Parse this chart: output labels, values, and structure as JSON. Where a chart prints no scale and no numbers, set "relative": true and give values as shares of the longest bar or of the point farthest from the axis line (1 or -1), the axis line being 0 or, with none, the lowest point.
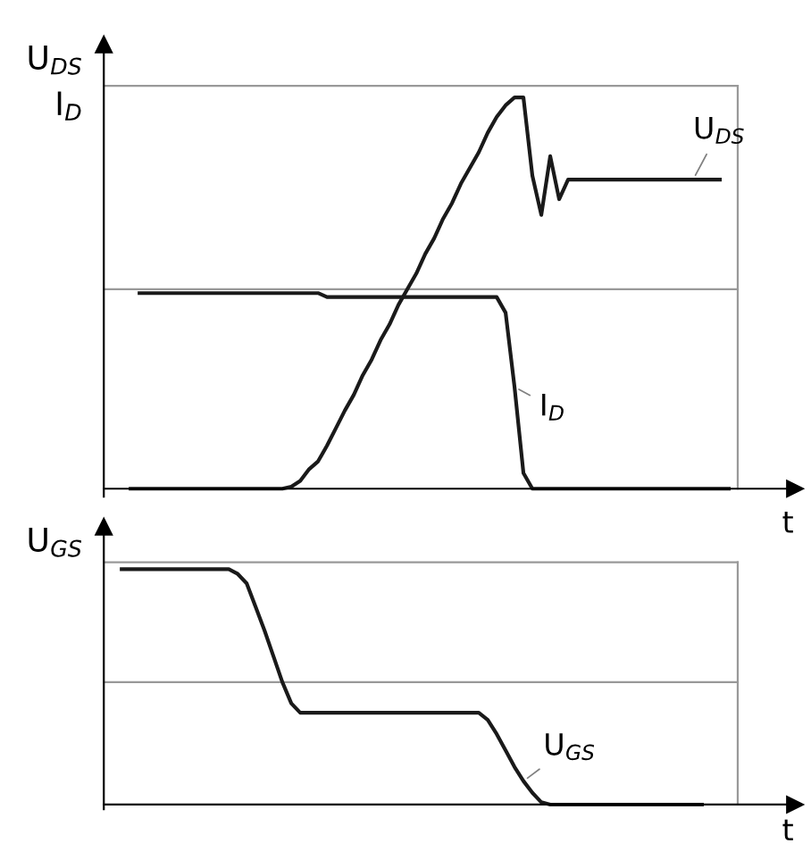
{
  "chart_data": [
    {
      "type": "line",
      "relative": true,
      "ylabel": "U$_{DS}$\nI$_{D}$",
      "xlabel": "t",
      "categories": [
        null,
        null,
        null,
        null,
        null,
        null,
        null,
        null,
        null,
        null,
        null,
        null,
        null,
        null,
        null,
        null,
        null,
        null,
        null,
        null,
        null,
        null,
        null,
        null,
        null,
        null,
        null,
        null,
        null,
        null,
        null,
        null,
        null,
        null,
        null,
        null,
        null,
        null,
        null,
        null,
        null,
        null,
        null,
        null,
        null,
        null,
        null,
        null,
        null,
        null,
        null,
        null,
        null,
        null,
        null,
        null,
        null,
        null,
        null,
        null,
        null,
        null,
        null,
        null,
        null,
        null,
        null,
        null,
        null,
        null,
        null,
        null
      ],
      "series": [
        {
          "name": "U$_{DS}$",
          "color": "#1a1a1a",
          "values": [
            null,
            null,
            null,
            0,
            0,
            0,
            0,
            0,
            0,
            0,
            0,
            0,
            0,
            0,
            0,
            0,
            0,
            0,
            0,
            0,
            0,
            0.005,
            0.02,
            0.05,
            0.07,
            0.11,
            0.155,
            0.2,
            0.24,
            0.29,
            0.33,
            0.38,
            0.42,
            0.47,
            0.51,
            0.55,
            0.6,
            0.64,
            0.69,
            0.73,
            0.78,
            0.82,
            0.86,
            0.91,
            0.95,
            0.98,
            1,
            1,
            0.8,
            0.7,
            0.85,
            0.74,
            0.79,
            0.79,
            0.79,
            0.79,
            0.79,
            0.79,
            0.79,
            0.79,
            0.79,
            0.79,
            0.79,
            0.79,
            0.79,
            0.79,
            0.79,
            0.79,
            0.79,
            0.79,
            null,
            null
          ]
        },
        {
          "name": "I$_{D}$",
          "color": "#1a1a1a",
          "values": [
            null,
            null,
            null,
            null,
            0.5,
            0.5,
            0.5,
            0.5,
            0.5,
            0.5,
            0.5,
            0.5,
            0.5,
            0.5,
            0.5,
            0.5,
            0.5,
            0.5,
            0.5,
            0.5,
            0.5,
            0.5,
            0.5,
            0.5,
            0.5,
            0.49,
            0.49,
            0.49,
            0.49,
            0.49,
            0.49,
            0.49,
            0.49,
            0.49,
            0.49,
            0.49,
            0.49,
            0.49,
            0.49,
            0.49,
            0.49,
            0.49,
            0.49,
            0.49,
            0.49,
            0.45,
            0.26,
            0.04,
            0,
            0,
            0,
            0,
            0,
            0,
            0,
            0,
            0,
            0,
            0,
            0,
            0,
            0,
            0,
            0,
            0,
            0,
            0,
            0,
            0,
            0,
            0,
            null
          ]
        }
      ],
      "ref_lines": [
        {
          "axis": "y",
          "value": 1.03,
          "color": "#999999"
        },
        {
          "axis": "y",
          "value": 0.51,
          "color": "#999999"
        }
      ]
    },
    {
      "type": "line",
      "relative": true,
      "ylabel": "U$_{GS}$",
      "xlabel": "t",
      "categories": [
        null,
        null,
        null,
        null,
        null,
        null,
        null,
        null,
        null,
        null,
        null,
        null,
        null,
        null,
        null,
        null,
        null,
        null,
        null,
        null,
        null,
        null,
        null,
        null,
        null,
        null,
        null,
        null,
        null,
        null,
        null,
        null,
        null,
        null,
        null,
        null,
        null,
        null,
        null,
        null,
        null,
        null,
        null,
        null,
        null,
        null,
        null,
        null,
        null,
        null,
        null,
        null,
        null,
        null,
        null,
        null,
        null,
        null,
        null,
        null,
        null,
        null,
        null,
        null,
        null,
        null,
        null,
        null,
        null,
        null,
        null,
        null
      ],
      "series": [
        {
          "name": "U$_{GS}$",
          "color": "#1a1a1a",
          "values": [
            null,
            null,
            1,
            1,
            1,
            1,
            1,
            1,
            1,
            1,
            1,
            1,
            1,
            1,
            1,
            0.98,
            0.94,
            0.84,
            0.74,
            0.63,
            0.52,
            0.43,
            0.39,
            0.39,
            0.39,
            0.39,
            0.39,
            0.39,
            0.39,
            0.39,
            0.39,
            0.39,
            0.39,
            0.39,
            0.39,
            0.39,
            0.39,
            0.39,
            0.39,
            0.39,
            0.39,
            0.39,
            0.39,
            0.36,
            0.3,
            0.23,
            0.16,
            0.1,
            0.05,
            0.01,
            0,
            0,
            0,
            0,
            0,
            0,
            0,
            0,
            0,
            0,
            0,
            0,
            0,
            0,
            0,
            0,
            0,
            0,
            null,
            null,
            null,
            null
          ]
        }
      ],
      "ref_lines": [
        {
          "axis": "y",
          "value": 1.03,
          "color": "#999999"
        },
        {
          "axis": "y",
          "value": 0.52,
          "color": "#999999"
        }
      ]
    }
  ]
}
